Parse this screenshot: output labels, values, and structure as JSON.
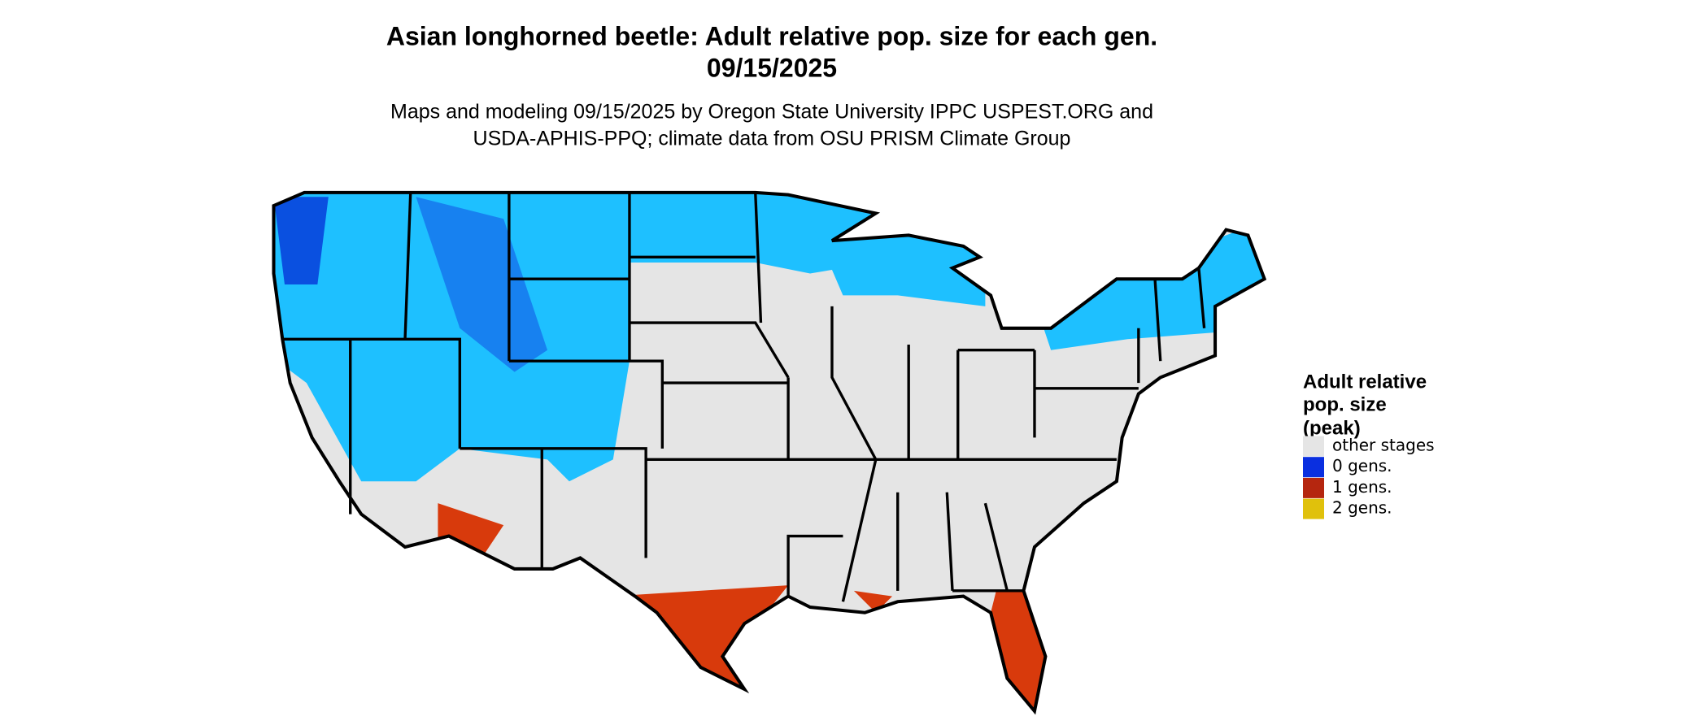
{
  "title": "Asian longhorned beetle: Adult relative pop. size for each gen.",
  "date": "09/15/2025",
  "subtitle": [
    "Maps and modeling 09/15/2025 by Oregon State University IPPC USPEST.ORG and",
    "USDA-APHIS-PPQ; climate data from OSU PRISM Climate Group"
  ],
  "legend": {
    "title": [
      "Adult relative",
      "pop. size",
      "(peak)"
    ],
    "items": [
      {
        "label": "other stages",
        "color": "#e5e5e5"
      },
      {
        "label": "0 gens.",
        "color": "#0a2fe0"
      },
      {
        "label": "1 gens.",
        "color": "#b5260f"
      },
      {
        "label": "2 gens.",
        "color": "#e0c10c"
      }
    ]
  }
}
